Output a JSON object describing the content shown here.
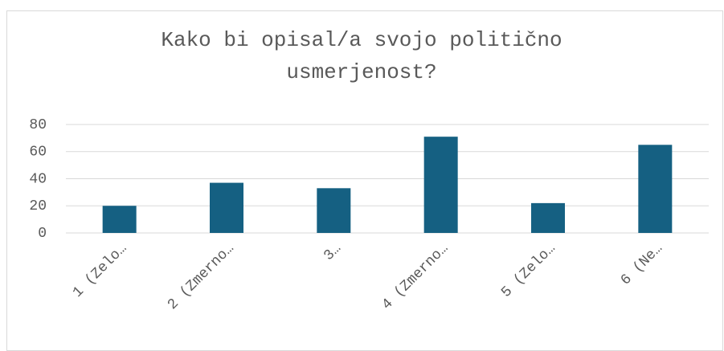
{
  "chart_data": {
    "type": "bar",
    "title": "Kako bi opisal/a svojo politično usmerjenost?",
    "categories": [
      "1 (Zelo…",
      "2 (Zmerno…",
      "3…",
      "4 (Zmerno…",
      "5 (Zelo…",
      "6 (Ne…"
    ],
    "values": [
      20,
      37,
      33,
      71,
      22,
      65
    ],
    "color": "#156082",
    "ylim": [
      0,
      80
    ],
    "yticks": [
      0,
      20,
      40,
      60,
      80
    ],
    "grid": true
  }
}
